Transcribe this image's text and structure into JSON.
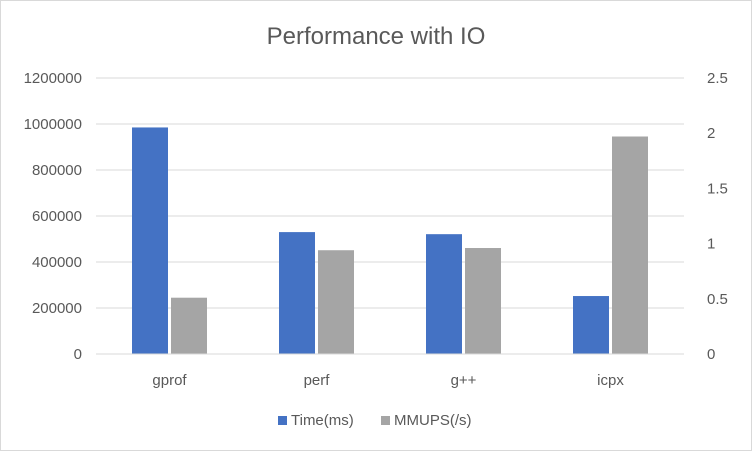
{
  "chart_data": {
    "type": "bar",
    "title": "Performance with IO",
    "categories": [
      "gprof",
      "perf",
      "g++",
      "icpx"
    ],
    "series": [
      {
        "name": "Time(ms)",
        "axis": "left",
        "color": "#4472C4",
        "values": [
          985000,
          530000,
          521000,
          252000
        ]
      },
      {
        "name": "MMUPS(/s)",
        "axis": "right",
        "color": "#A5A5A5",
        "values": [
          0.51,
          0.94,
          0.96,
          1.97
        ]
      }
    ],
    "y_left": {
      "ylim": [
        0,
        1200000
      ],
      "ticks": [
        "0",
        "200000",
        "400000",
        "600000",
        "800000",
        "1000000",
        "1200000"
      ]
    },
    "y_right": {
      "ylim": [
        0,
        2.5
      ],
      "ticks": [
        "0",
        "0.5",
        "1",
        "1.5",
        "2",
        "2.5"
      ]
    },
    "grid": true,
    "legend_position": "bottom"
  }
}
